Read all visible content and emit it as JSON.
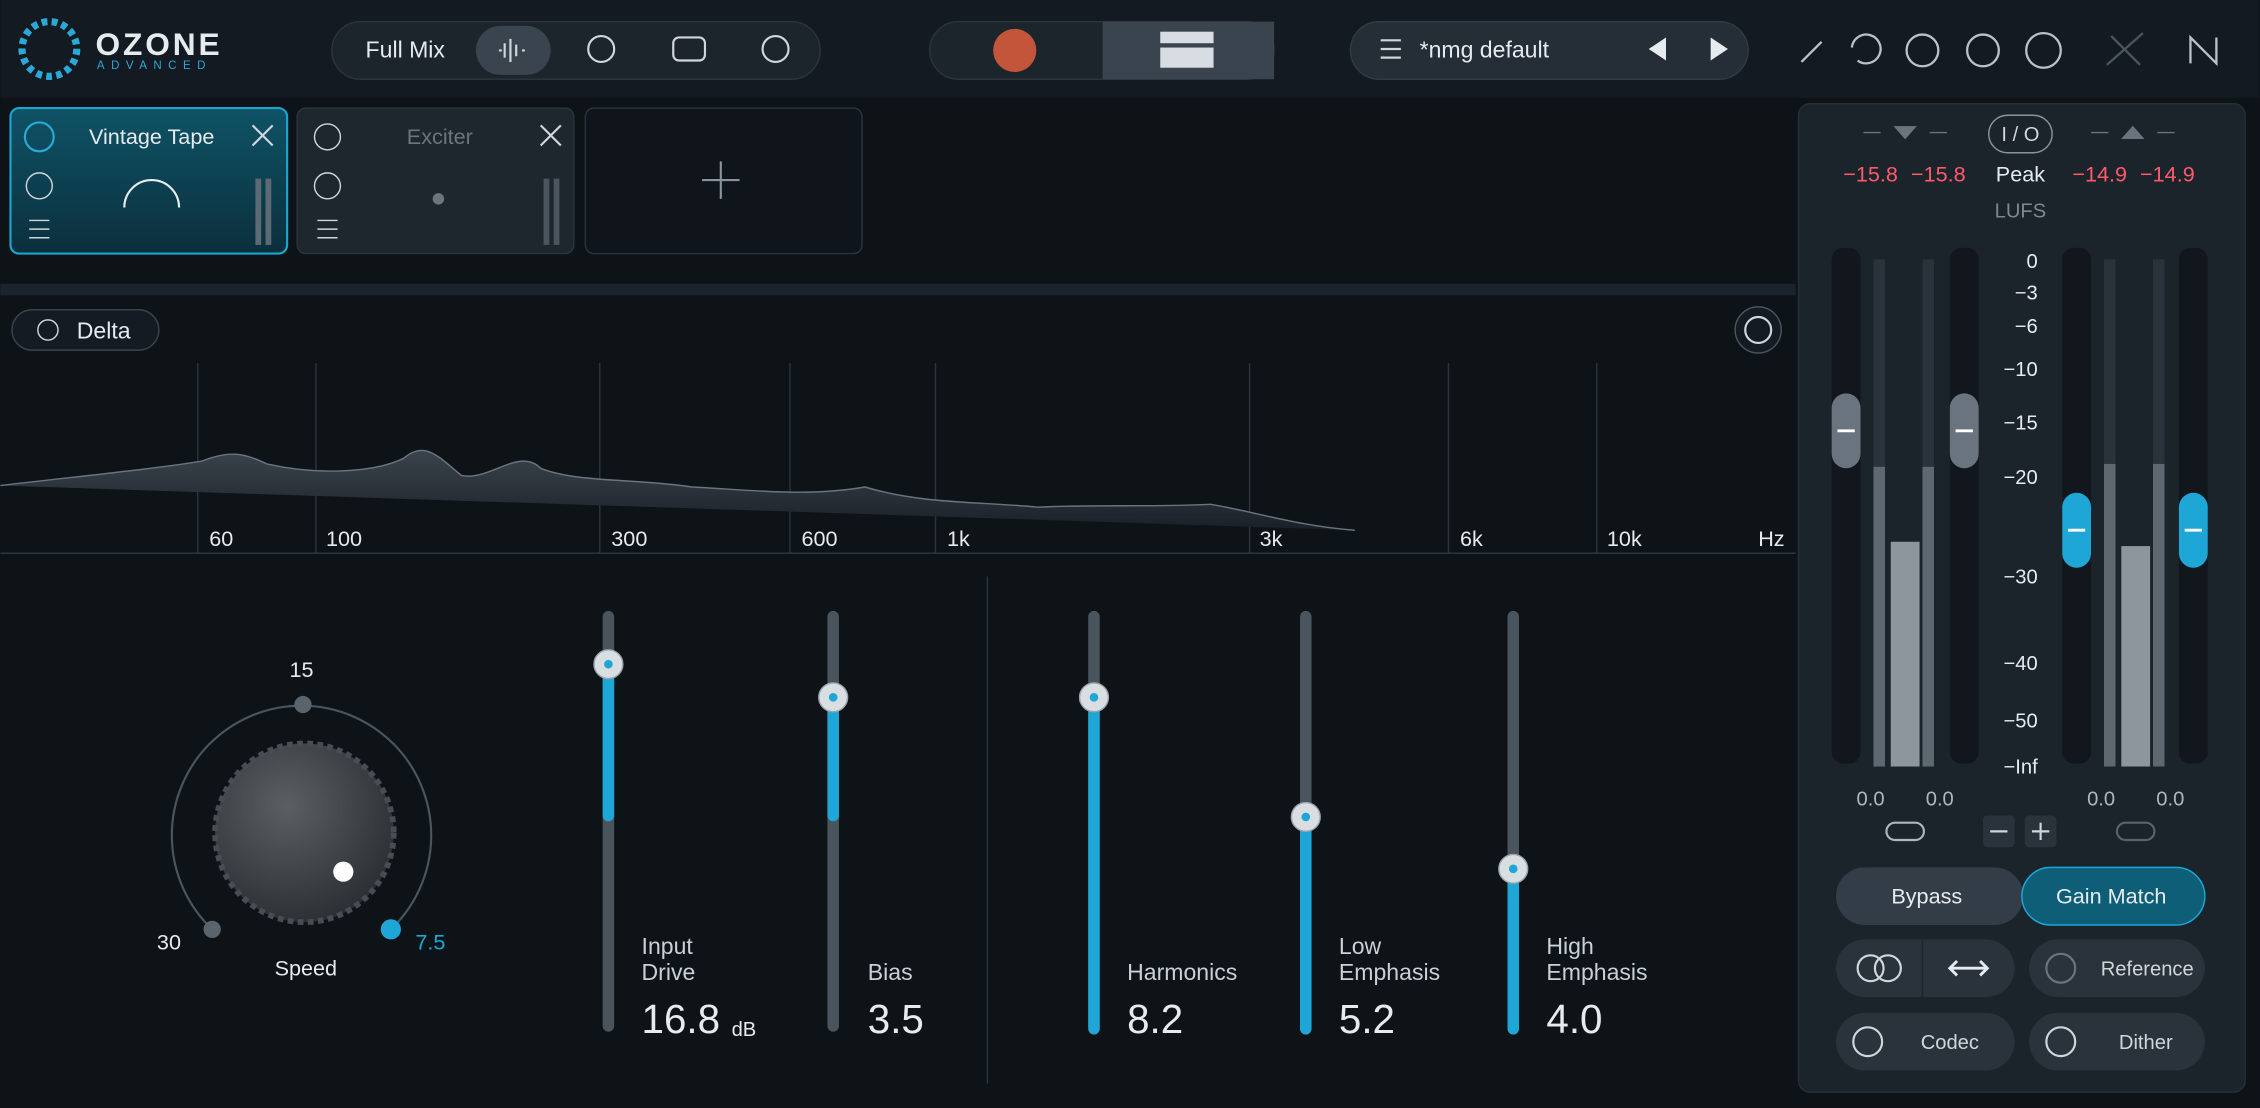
{
  "header": {
    "logo": "OZONE",
    "logo_sub": "ADVANCED",
    "mode": "Full Mix",
    "preset": "*nmg default"
  },
  "modules": [
    {
      "name": "Vintage Tape"
    },
    {
      "name": "Exciter"
    }
  ],
  "spectrum": {
    "delta": "Delta",
    "freq_labels": [
      "60",
      "100",
      "300",
      "600",
      "1k",
      "3k",
      "6k",
      "10k",
      "Hz"
    ]
  },
  "controls": {
    "speed": {
      "label": "Speed",
      "marks": [
        "15",
        "30",
        "7.5"
      ]
    },
    "sliders": [
      {
        "label": [
          "Input",
          "Drive"
        ],
        "value": "16.8",
        "unit": "dB"
      },
      {
        "label": [
          "Bias"
        ],
        "value": "3.5"
      },
      {
        "label": [
          "Harmonics"
        ],
        "value": "8.2"
      },
      {
        "label": [
          "Low",
          "Emphasis"
        ],
        "value": "5.2"
      },
      {
        "label": [
          "High",
          "Emphasis"
        ],
        "value": "4.0"
      }
    ]
  },
  "meters": {
    "io": "I / O",
    "in_values": [
      "−15.8",
      "−15.8"
    ],
    "mode": "Peak",
    "out_values": [
      "−14.9",
      "−14.9"
    ],
    "unit": "LUFS",
    "scale": [
      "0",
      "−3",
      "−6",
      "−10",
      "−15",
      "−20",
      "−30",
      "−40",
      "−50",
      "−Inf"
    ],
    "gains": [
      "0.0",
      "0.0",
      "0.0",
      "0.0"
    ]
  },
  "buttons": {
    "bypass": "Bypass",
    "gain_match": "Gain Match",
    "reference": "Reference",
    "codec": "Codec",
    "dither": "Dither"
  }
}
